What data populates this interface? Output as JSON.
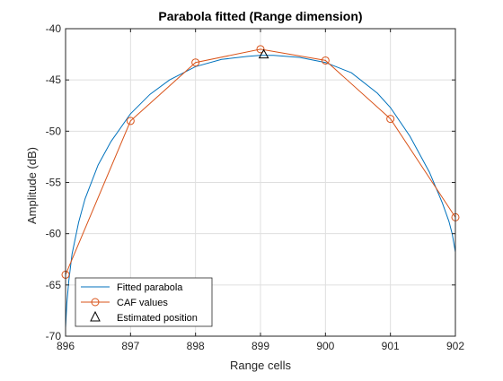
{
  "chart_data": {
    "type": "line",
    "title": "Parabola fitted (Range dimension)",
    "xlabel": "Range cells",
    "ylabel": "Amplitude (dB)",
    "xlim": [
      896,
      902
    ],
    "ylim": [
      -70,
      -40
    ],
    "x_ticks": [
      896,
      897,
      898,
      899,
      900,
      901,
      902
    ],
    "y_ticks": [
      -40,
      -45,
      -50,
      -55,
      -60,
      -65,
      -70
    ],
    "grid": true,
    "legend_position": "bottom-left",
    "series": [
      {
        "name": "Fitted parabola",
        "color": "#0072BD",
        "marker": "none",
        "x": [
          896.0,
          896.02,
          896.05,
          896.1,
          896.2,
          896.3,
          896.5,
          896.7,
          897.0,
          897.3,
          897.6,
          898.0,
          898.4,
          898.8,
          899.0,
          899.2,
          899.6,
          900.0,
          900.4,
          900.8,
          901.0,
          901.3,
          901.6,
          901.8,
          901.9,
          901.95,
          902.0
        ],
        "y": [
          -69.2,
          -66.8,
          -64.6,
          -62.0,
          -58.9,
          -56.6,
          -53.3,
          -51.0,
          -48.3,
          -46.4,
          -45.0,
          -43.7,
          -43.0,
          -42.7,
          -42.6,
          -42.6,
          -42.8,
          -43.3,
          -44.3,
          -46.3,
          -47.7,
          -50.5,
          -54.0,
          -57.0,
          -58.8,
          -60.0,
          -61.8
        ]
      },
      {
        "name": "CAF values",
        "color": "#D95319",
        "marker": "circle",
        "x": [
          896,
          897,
          898,
          899,
          900,
          901,
          902
        ],
        "y": [
          -64.0,
          -49.0,
          -43.3,
          -42.0,
          -43.1,
          -48.8,
          -58.4
        ]
      },
      {
        "name": "Estimated position",
        "color": "#000000",
        "marker": "triangle",
        "x": [
          899.05
        ],
        "y": [
          -42.5
        ]
      }
    ]
  }
}
